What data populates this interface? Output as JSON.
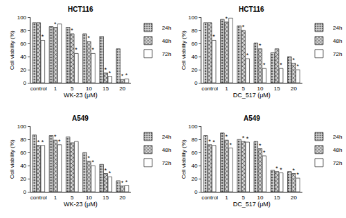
{
  "chart_data": [
    {
      "type": "bar",
      "title": "HCT116",
      "x_label": "WK-23 (μM)",
      "y_label": "Cell viability (%)",
      "categories": [
        "control",
        "1",
        "5",
        "10",
        "15",
        "20"
      ],
      "ylim": [
        0,
        100
      ],
      "yticks": [
        0,
        20,
        40,
        60,
        80,
        100
      ],
      "legend": "right",
      "series": [
        {
          "name": "24h",
          "color": "#444444",
          "marker": "dots",
          "values": [
            92,
            86,
            85,
            75,
            71,
            52
          ],
          "significance": [
            null,
            null,
            null,
            null,
            null,
            null
          ]
        },
        {
          "name": "48h",
          "color": "#444444",
          "marker": "crosshatch",
          "values": [
            92,
            85,
            75,
            63,
            15,
            5
          ],
          "significance": [
            null,
            "*",
            "*",
            "*",
            "*",
            "*"
          ]
        },
        {
          "name": "72h",
          "color": "#444444",
          "marker": "none",
          "values": [
            65,
            90,
            45,
            45,
            10,
            6
          ],
          "significance": [
            "*",
            null,
            "*",
            "*",
            "*",
            "*"
          ]
        }
      ]
    },
    {
      "type": "bar",
      "title": "HCT116",
      "x_label": "DC_517 (μM)",
      "y_label": "Cell viability (%)",
      "categories": [
        "control",
        "1",
        "5",
        "10",
        "15",
        "20"
      ],
      "ylim": [
        0,
        100
      ],
      "yticks": [
        0,
        20,
        40,
        60,
        80,
        100
      ],
      "legend": "right",
      "series": [
        {
          "name": "24h",
          "color": "#444444",
          "marker": "dots",
          "values": [
            92,
            97,
            87,
            61,
            46,
            40
          ],
          "significance": [
            null,
            null,
            null,
            null,
            null,
            null
          ]
        },
        {
          "name": "48h",
          "color": "#444444",
          "marker": "crosshatch",
          "values": [
            92,
            93,
            80,
            52,
            52,
            30
          ],
          "significance": [
            null,
            "*",
            "*",
            "*",
            null,
            "*"
          ]
        },
        {
          "name": "72h",
          "color": "#444444",
          "marker": "none",
          "values": [
            65,
            99,
            37,
            22,
            22,
            20
          ],
          "significance": [
            "*",
            null,
            "*",
            "*",
            "*",
            "*"
          ]
        }
      ]
    },
    {
      "type": "bar",
      "title": "A549",
      "x_label": "WK-23 (μM)",
      "y_label": "Cell viability (%)",
      "categories": [
        "control",
        "1",
        "5",
        "10",
        "15",
        "20"
      ],
      "ylim": [
        0,
        100
      ],
      "yticks": [
        0,
        20,
        40,
        60,
        80,
        100
      ],
      "legend": "right",
      "series": [
        {
          "name": "24h",
          "color": "#444444",
          "marker": "dots",
          "values": [
            87,
            86,
            84,
            60,
            42,
            17
          ],
          "significance": [
            null,
            null,
            null,
            null,
            null,
            null
          ]
        },
        {
          "name": "48h",
          "color": "#444444",
          "marker": "crosshatch",
          "values": [
            71,
            79,
            75,
            47,
            28,
            9
          ],
          "significance": [
            "*",
            "*",
            null,
            "*",
            "*",
            "*"
          ]
        },
        {
          "name": "72h",
          "color": "#444444",
          "marker": "none",
          "values": [
            71,
            72,
            77,
            40,
            23,
            10
          ],
          "significance": [
            "*",
            "*",
            null,
            "*",
            "*",
            "*"
          ]
        }
      ]
    },
    {
      "type": "bar",
      "title": "A549",
      "x_label": "DC_517 (μM)",
      "y_label": "Cell viability (%)",
      "categories": [
        "control",
        "1",
        "5",
        "10",
        "15",
        "20"
      ],
      "ylim": [
        0,
        100
      ],
      "yticks": [
        0,
        20,
        40,
        60,
        80,
        100
      ],
      "legend": "right",
      "series": [
        {
          "name": "24h",
          "color": "#444444",
          "marker": "dots",
          "values": [
            86,
            90,
            80,
            77,
            33,
            31
          ],
          "significance": [
            null,
            null,
            null,
            null,
            null,
            null
          ]
        },
        {
          "name": "48h",
          "color": "#444444",
          "marker": "crosshatch",
          "values": [
            72,
            79,
            77,
            66,
            31,
            28
          ],
          "significance": [
            "*",
            "*",
            "*",
            "*",
            "*",
            "*"
          ]
        },
        {
          "name": "72h",
          "color": "#444444",
          "marker": "none",
          "values": [
            71,
            67,
            76,
            55,
            29,
            21
          ],
          "significance": [
            "*",
            "*",
            "*",
            "*",
            "*",
            "*"
          ]
        }
      ]
    }
  ]
}
